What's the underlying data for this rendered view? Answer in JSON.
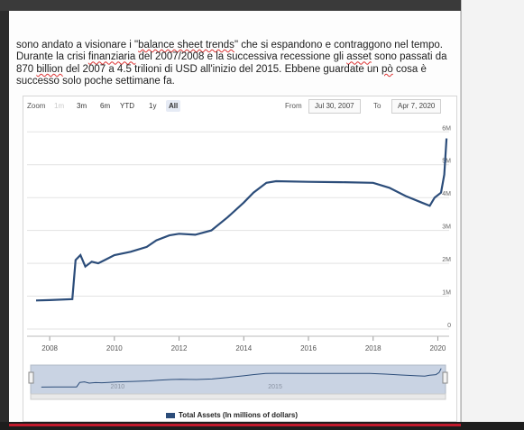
{
  "paragraph": {
    "t1": "sono andato a visionare i \"",
    "t2": "balance sheet trends",
    "t3": "\" che si espandono e contraggono nel tempo. Durante la crisi ",
    "t4": "finanziaria",
    "t5": " del 2007/2008 e la successiva recessione gli ",
    "t6": "asset",
    "t7": " sono passati da 870 ",
    "t8": "billion",
    "t9": " del 2007 a 4.5 trilioni di USD all'inizio del 2015. Ebbene guardate un ",
    "t10": "pò",
    "t11": " cosa è successo solo poche settimane fa."
  },
  "toolbar": {
    "zoom_label": "Zoom",
    "buttons": [
      "1m",
      "3m",
      "6m",
      "YTD",
      "1y",
      "All"
    ],
    "from_label": "From",
    "from_value": "Jul 30, 2007",
    "to_label": "To",
    "to_value": "Apr 7, 2020"
  },
  "chart_data": {
    "type": "line",
    "title": "",
    "xlabel": "",
    "ylabel": "",
    "x_ticks": [
      "2008",
      "2010",
      "2012",
      "2014",
      "2016",
      "2018",
      "2020"
    ],
    "y_ticks": [
      "0",
      "1M",
      "2M",
      "3M",
      "4M",
      "5M",
      "6M"
    ],
    "ylim": [
      0,
      6200000
    ],
    "series": [
      {
        "name": "Total Assets (In millions of dollars)",
        "color": "#2c4d7a",
        "x": [
          2007.58,
          2008.0,
          2008.7,
          2008.8,
          2008.95,
          2009.1,
          2009.3,
          2009.5,
          2009.7,
          2010.0,
          2010.5,
          2011.0,
          2011.3,
          2011.7,
          2012.0,
          2012.5,
          2013.0,
          2013.5,
          2014.0,
          2014.3,
          2014.7,
          2015.0,
          2016.0,
          2017.0,
          2018.0,
          2018.5,
          2019.0,
          2019.5,
          2019.75,
          2019.9,
          2020.1,
          2020.2,
          2020.27
        ],
        "values": [
          870000,
          880000,
          910000,
          2100000,
          2250000,
          1900000,
          2050000,
          2000000,
          2100000,
          2250000,
          2350000,
          2500000,
          2700000,
          2850000,
          2900000,
          2870000,
          3000000,
          3400000,
          3850000,
          4150000,
          4450000,
          4500000,
          4480000,
          4470000,
          4450000,
          4300000,
          4050000,
          3850000,
          3750000,
          4000000,
          4150000,
          4700000,
          5800000
        ]
      }
    ],
    "legend": "bottom-center",
    "grid": true,
    "navigator": {
      "x_ticks": [
        "2010",
        "2015"
      ]
    }
  }
}
